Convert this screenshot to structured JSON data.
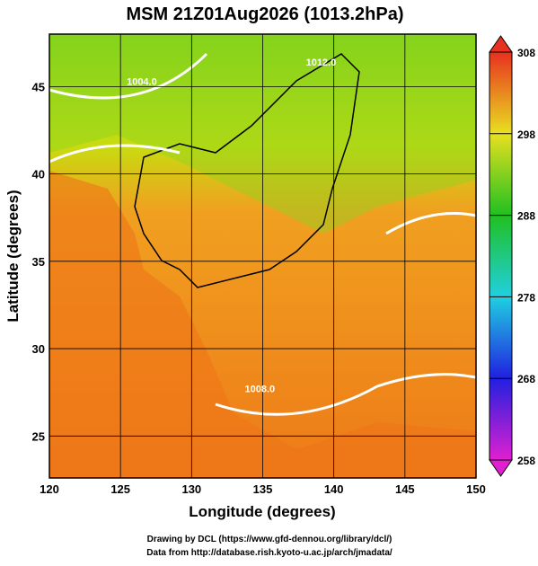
{
  "title": "MSM 21Z01Aug2026 (1013.2hPa)",
  "map": {
    "xlabel": "Longitude (degrees)",
    "ylabel": "Latitude  (degrees)",
    "xlim": [
      120,
      150
    ],
    "ylim": [
      22.6,
      48
    ],
    "xticks": [
      120,
      125,
      130,
      135,
      140,
      145,
      150
    ],
    "yticks": [
      25,
      30,
      35,
      40,
      45
    ],
    "isobar_labels": [
      {
        "text": "1004.0",
        "lon": 126.5,
        "lat": 45.1
      },
      {
        "text": "1012.0",
        "lon": 139.1,
        "lat": 46.2
      },
      {
        "text": "1008.0",
        "lon": 134.8,
        "lat": 27.5
      }
    ]
  },
  "colorbar": {
    "lim": [
      258,
      308
    ],
    "ticks": [
      258,
      268,
      278,
      288,
      298,
      308
    ]
  },
  "credits": [
    "Drawing by DCL (https://www.gfd-dennou.org/library/dcl/)",
    "Data from http://database.rish.kyoto-u.ac.jp/arch/jmadata/"
  ]
}
